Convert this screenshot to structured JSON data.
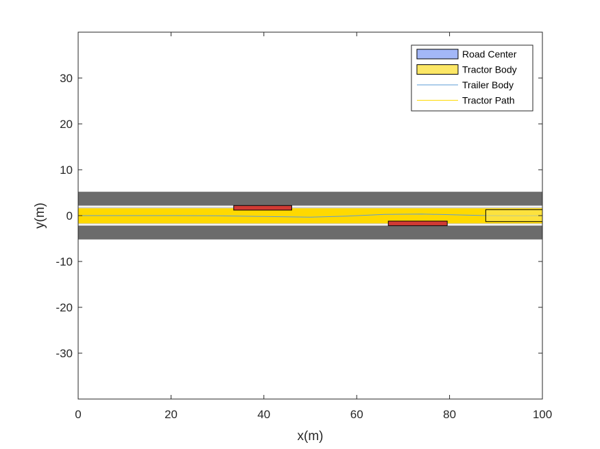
{
  "chart_data": {
    "type": "line",
    "title": "",
    "xlabel": "x(m)",
    "ylabel": "y(m)",
    "xlim": [
      0,
      100
    ],
    "ylim": [
      -40,
      40
    ],
    "xticks": [
      0,
      20,
      40,
      60,
      80,
      100
    ],
    "yticks": [
      -30,
      -20,
      -10,
      0,
      10,
      20,
      30
    ],
    "xtick_labels": [
      "0",
      "20",
      "40",
      "60",
      "80",
      "100"
    ],
    "ytick_labels": [
      "-30",
      "-20",
      "-10",
      "0",
      "10",
      "20",
      "30"
    ],
    "grid": false,
    "legend_position": "top-right",
    "road": {
      "x_range": [
        0,
        100
      ],
      "half_width": 5.2,
      "lane_markings_y": [
        2.0,
        -2.0
      ],
      "inner_surface_half_width": 2.2,
      "road_color": "#6b6b6b",
      "inner_color": "#cfcfcf",
      "marking_color": "#ffffff"
    },
    "obstacles": [
      {
        "x_start": 33.5,
        "x_end": 46.0,
        "y_low": 1.2,
        "y_high": 2.2,
        "color": "#d03a34"
      },
      {
        "x_start": 66.8,
        "x_end": 79.5,
        "y_low": -2.2,
        "y_high": -1.2,
        "color": "#d03a34"
      }
    ],
    "tractor_body": {
      "x_start": 87.8,
      "x_end": 100,
      "y_low": -1.3,
      "y_high": 1.3
    },
    "trailer_body_path": {
      "x": [
        0,
        10,
        20,
        30,
        40,
        50,
        58,
        66,
        74,
        82,
        88,
        94,
        100
      ],
      "y": [
        0,
        0,
        0,
        -0.05,
        -0.2,
        -0.35,
        -0.1,
        0.25,
        0.35,
        0.15,
        0.0,
        -0.05,
        0
      ]
    },
    "tractor_path_band": {
      "x_range": [
        0,
        100
      ],
      "y_low": -1.7,
      "y_high": 1.6
    },
    "series": [
      {
        "name": "Road Center",
        "color": "#a3b7f7"
      },
      {
        "name": "Tractor Body",
        "color": "#fce766"
      },
      {
        "name": "Trailer Body",
        "color": "#5b9bd5"
      },
      {
        "name": "Tractor Path",
        "color": "#ffd900"
      }
    ]
  }
}
